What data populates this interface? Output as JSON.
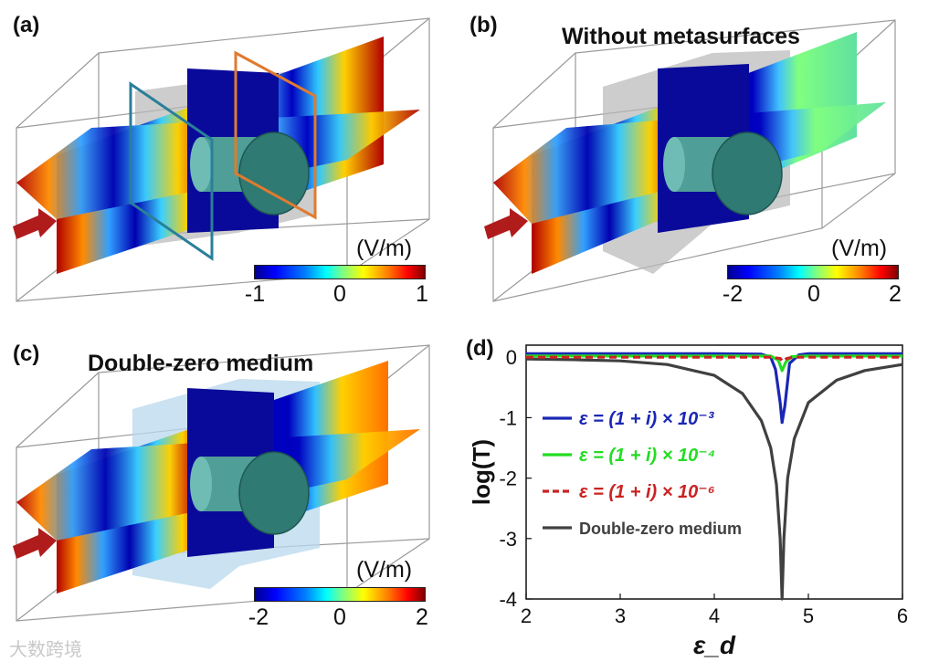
{
  "panels": {
    "a": {
      "label": "(a)",
      "title": "",
      "unit": "(V/m)",
      "ticks": [
        "-1",
        "0",
        "1"
      ]
    },
    "b": {
      "label": "(b)",
      "title": "Without metasurfaces",
      "unit": "(V/m)",
      "ticks": [
        "-2",
        "0",
        "2"
      ]
    },
    "c": {
      "label": "(c)",
      "title": "Double-zero medium",
      "unit": "(V/m)",
      "ticks": [
        "-2",
        "0",
        "2"
      ]
    },
    "d": {
      "label": "(d)"
    }
  },
  "colors": {
    "blue": "#1a27b5",
    "green": "#22dd22",
    "red": "#cc2222",
    "gray": "#404040",
    "frame_teal": "#2a7f9a",
    "frame_orange": "#e07a30",
    "cylinder": "#3d8f88"
  },
  "watermark": "大数跨境",
  "chart_data": {
    "type": "line",
    "title": "",
    "xlabel": "ε_d",
    "ylabel": "log(T)",
    "xlim": [
      2,
      6
    ],
    "ylim": [
      -4,
      0.2
    ],
    "xticks": [
      "2",
      "3",
      "4",
      "5",
      "6"
    ],
    "yticks": [
      "0",
      "-1",
      "-2",
      "-3",
      "-4"
    ],
    "legend_position": "left",
    "series": [
      {
        "name": "ε = (1 + i) × 10⁻³",
        "color": "#1a27b5",
        "dash": "solid",
        "x": [
          2.0,
          3.0,
          4.0,
          4.5,
          4.6,
          4.65,
          4.7,
          4.72,
          4.75,
          4.8,
          4.9,
          5.0,
          6.0
        ],
        "y": [
          0.06,
          0.06,
          0.06,
          0.05,
          0.0,
          -0.2,
          -0.75,
          -1.08,
          -0.8,
          -0.1,
          0.04,
          0.06,
          0.06
        ]
      },
      {
        "name": "ε = (1 + i) × 10⁻⁴",
        "color": "#22dd22",
        "dash": "solid",
        "x": [
          2.0,
          3.0,
          4.0,
          4.6,
          4.68,
          4.72,
          4.76,
          4.82,
          5.0,
          6.0
        ],
        "y": [
          0.02,
          0.02,
          0.02,
          0.02,
          -0.05,
          -0.22,
          -0.08,
          0.01,
          0.02,
          0.02
        ]
      },
      {
        "name": "ε = (1 + i) × 10⁻⁶",
        "color": "#cc2222",
        "dash": "dashed",
        "x": [
          2.0,
          3.0,
          4.0,
          4.6,
          4.7,
          4.73,
          4.77,
          4.85,
          5.0,
          6.0
        ],
        "y": [
          0.0,
          0.0,
          0.0,
          0.0,
          -0.02,
          -0.07,
          -0.02,
          0.0,
          0.0,
          0.0
        ]
      },
      {
        "name": "Double-zero medium",
        "color": "#404040",
        "dash": "solid",
        "x": [
          2.0,
          2.5,
          3.0,
          3.5,
          4.0,
          4.3,
          4.5,
          4.6,
          4.66,
          4.7,
          4.72,
          4.74,
          4.78,
          4.85,
          5.0,
          5.3,
          5.6,
          6.0
        ],
        "y": [
          -0.03,
          -0.04,
          -0.06,
          -0.12,
          -0.3,
          -0.6,
          -1.05,
          -1.5,
          -2.1,
          -3.0,
          -4.0,
          -3.0,
          -2.0,
          -1.35,
          -0.75,
          -0.38,
          -0.22,
          -0.12
        ]
      }
    ]
  }
}
